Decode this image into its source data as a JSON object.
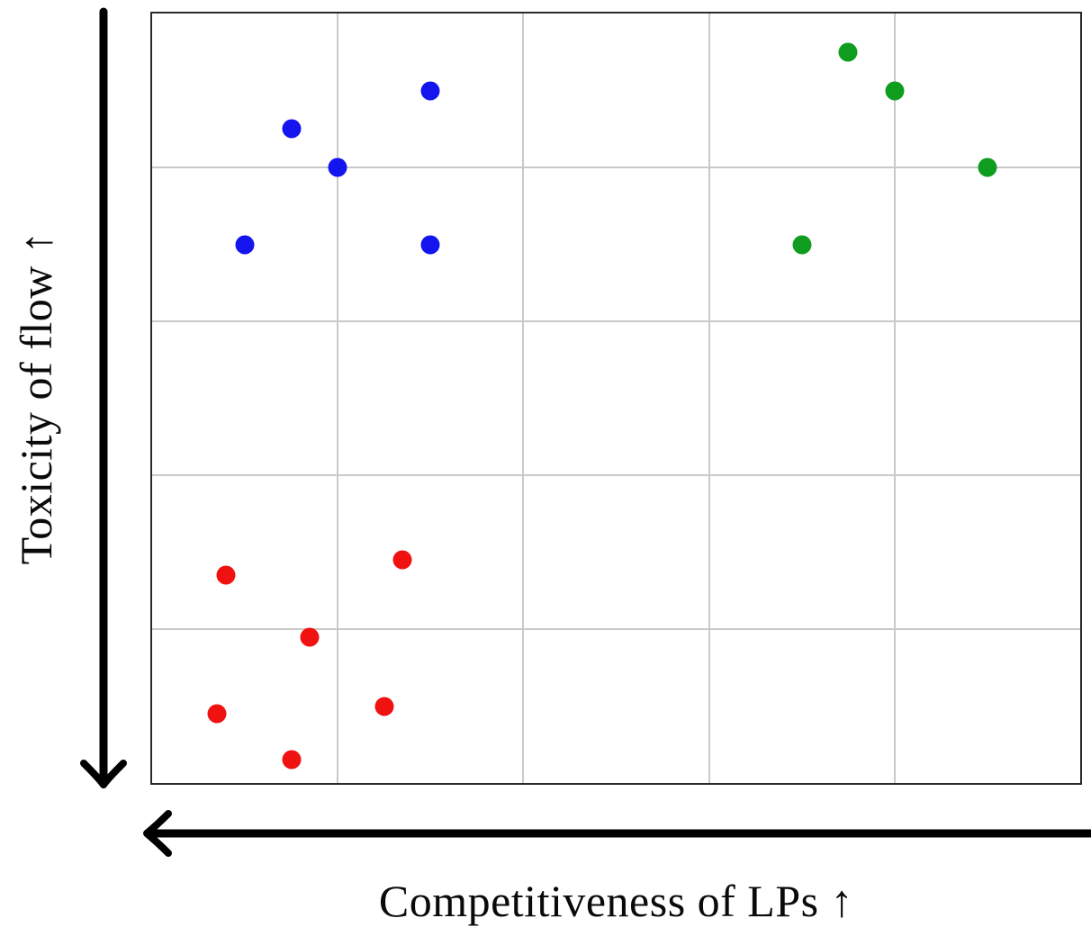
{
  "figure": {
    "x_axis_label": "Competitiveness of LPs ↑",
    "y_axis_label": "Toxicity of flow ↑",
    "x_axis_arrow_direction": "left",
    "y_axis_arrow_direction": "down"
  },
  "colors": {
    "blue": "#1414ee",
    "green": "#0f9d1f",
    "red": "#f01111",
    "grid": "#c9c9c9",
    "plot_border": "#2a2a2a",
    "axis_arrow": "#000000",
    "label_text": "#0a0a0a",
    "background": "#ffffff"
  },
  "chart_data": {
    "type": "scatter",
    "title": "",
    "xlabel": "Competitiveness of LPs ↑",
    "ylabel": "Toxicity of flow ↑",
    "axes_note": "Qualitative axes with no numeric ticks; axis arrows drawn pointing left (x) and down (y) while labels indicate increasing direction with ↑. Point coordinates are percent of plot area, origin top-left.",
    "grid": {
      "columns": 5,
      "rows": 5,
      "visible": true,
      "line_positions_pct": [
        20,
        40,
        60,
        80
      ]
    },
    "series": [
      {
        "name": "blue-cluster",
        "color": "#1414ee",
        "points": [
          {
            "x_pct": 15,
            "y_pct": 15
          },
          {
            "x_pct": 30,
            "y_pct": 10
          },
          {
            "x_pct": 20,
            "y_pct": 20
          },
          {
            "x_pct": 10,
            "y_pct": 30
          },
          {
            "x_pct": 30,
            "y_pct": 30
          }
        ]
      },
      {
        "name": "green-cluster",
        "color": "#0f9d1f",
        "points": [
          {
            "x_pct": 75,
            "y_pct": 5
          },
          {
            "x_pct": 80,
            "y_pct": 10
          },
          {
            "x_pct": 90,
            "y_pct": 20
          },
          {
            "x_pct": 70,
            "y_pct": 30
          }
        ]
      },
      {
        "name": "red-cluster",
        "color": "#f01111",
        "points": [
          {
            "x_pct": 8,
            "y_pct": 73
          },
          {
            "x_pct": 27,
            "y_pct": 71
          },
          {
            "x_pct": 17,
            "y_pct": 81
          },
          {
            "x_pct": 7,
            "y_pct": 91
          },
          {
            "x_pct": 25,
            "y_pct": 90
          },
          {
            "x_pct": 15,
            "y_pct": 97
          }
        ]
      }
    ]
  }
}
